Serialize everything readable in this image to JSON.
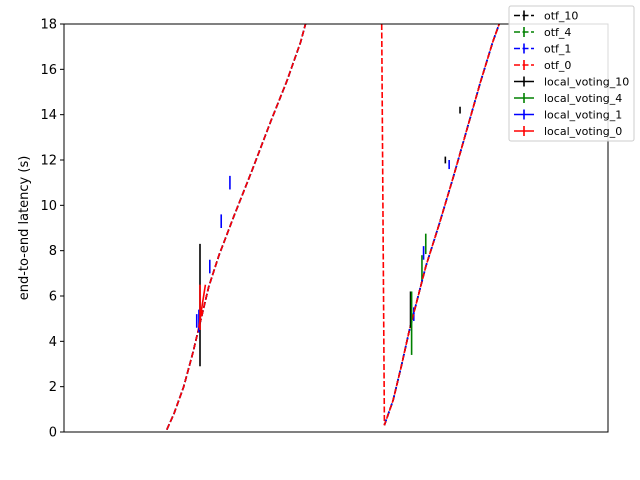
{
  "chart_data": {
    "type": "line",
    "title": "",
    "xlabel": "",
    "ylabel": "end-to-end latency (s)",
    "ylim": [
      0,
      18
    ],
    "yticks": [
      0,
      2,
      4,
      6,
      8,
      10,
      12,
      14,
      16,
      18
    ],
    "xticks": [],
    "xlim": [
      0,
      1
    ],
    "grid": false,
    "legend_position": "upper-right",
    "series": [
      {
        "name": "otf_10",
        "color": "#000000",
        "linestyle": "dashed",
        "segments": [
          [
            [
              0.189,
              0.1
            ],
            [
              0.202,
              0.8
            ],
            [
              0.22,
              2.0
            ],
            [
              0.237,
              3.5
            ],
            [
              0.252,
              5.0
            ],
            [
              0.266,
              6.4
            ],
            [
              0.285,
              7.8
            ],
            [
              0.312,
              9.5
            ],
            [
              0.345,
              11.5
            ],
            [
              0.38,
              13.7
            ],
            [
              0.41,
              15.5
            ],
            [
              0.435,
              17.2
            ],
            [
              0.444,
              18.0
            ]
          ],
          [
            [
              0.589,
              0.3
            ],
            [
              0.605,
              1.4
            ],
            [
              0.62,
              2.9
            ],
            [
              0.634,
              4.4
            ],
            [
              0.65,
              5.9
            ],
            [
              0.665,
              7.3
            ],
            [
              0.69,
              9.2
            ],
            [
              0.715,
              11.2
            ],
            [
              0.74,
              13.3
            ],
            [
              0.765,
              15.4
            ],
            [
              0.788,
              17.2
            ],
            [
              0.8,
              18.0
            ]
          ]
        ],
        "errorbars": [
          [
            0.701,
            12.0,
            0.15
          ],
          [
            0.728,
            14.2,
            0.15
          ]
        ]
      },
      {
        "name": "otf_4",
        "color": "#008000",
        "linestyle": "dashed",
        "segments": [
          [
            [
              0.189,
              0.1
            ],
            [
              0.202,
              0.8
            ],
            [
              0.22,
              2.0
            ],
            [
              0.237,
              3.5
            ],
            [
              0.252,
              5.0
            ],
            [
              0.266,
              6.4
            ],
            [
              0.285,
              7.8
            ],
            [
              0.312,
              9.5
            ],
            [
              0.345,
              11.5
            ],
            [
              0.38,
              13.7
            ],
            [
              0.41,
              15.5
            ],
            [
              0.435,
              17.2
            ],
            [
              0.444,
              18.0
            ]
          ],
          [
            [
              0.589,
              0.3
            ],
            [
              0.605,
              1.4
            ],
            [
              0.62,
              2.9
            ],
            [
              0.634,
              4.4
            ],
            [
              0.65,
              5.9
            ],
            [
              0.665,
              7.3
            ],
            [
              0.69,
              9.2
            ],
            [
              0.715,
              11.2
            ],
            [
              0.74,
              13.3
            ],
            [
              0.765,
              15.4
            ],
            [
              0.788,
              17.2
            ],
            [
              0.8,
              18.0
            ]
          ]
        ],
        "errorbars": [
          [
            0.665,
            8.3,
            0.45
          ],
          [
            0.658,
            7.2,
            0.6
          ]
        ]
      },
      {
        "name": "otf_1",
        "color": "#0000ff",
        "linestyle": "dashed",
        "segments": [
          [
            [
              0.189,
              0.1
            ],
            [
              0.202,
              0.8
            ],
            [
              0.22,
              2.0
            ],
            [
              0.237,
              3.5
            ],
            [
              0.252,
              5.0
            ],
            [
              0.266,
              6.4
            ],
            [
              0.285,
              7.8
            ],
            [
              0.312,
              9.5
            ],
            [
              0.345,
              11.5
            ],
            [
              0.38,
              13.7
            ],
            [
              0.41,
              15.5
            ],
            [
              0.435,
              17.2
            ],
            [
              0.444,
              18.0
            ]
          ],
          [
            [
              0.589,
              0.3
            ],
            [
              0.605,
              1.4
            ],
            [
              0.62,
              2.9
            ],
            [
              0.634,
              4.4
            ],
            [
              0.65,
              5.9
            ],
            [
              0.665,
              7.3
            ],
            [
              0.69,
              9.2
            ],
            [
              0.715,
              11.2
            ],
            [
              0.74,
              13.3
            ],
            [
              0.765,
              15.4
            ],
            [
              0.788,
              17.2
            ],
            [
              0.8,
              18.0
            ]
          ]
        ],
        "errorbars": [
          [
            0.244,
            4.9,
            0.3
          ],
          [
            0.268,
            7.3,
            0.3
          ],
          [
            0.289,
            9.3,
            0.3
          ],
          [
            0.305,
            11.0,
            0.3
          ],
          [
            0.643,
            5.2,
            0.3
          ],
          [
            0.661,
            7.9,
            0.3
          ],
          [
            0.708,
            11.8,
            0.2
          ]
        ]
      },
      {
        "name": "otf_0",
        "color": "#ff0000",
        "linestyle": "dashed",
        "segments": [
          [
            [
              0.189,
              0.1
            ],
            [
              0.202,
              0.8
            ],
            [
              0.22,
              2.0
            ],
            [
              0.237,
              3.5
            ],
            [
              0.252,
              5.0
            ],
            [
              0.266,
              6.4
            ],
            [
              0.285,
              7.8
            ],
            [
              0.312,
              9.5
            ],
            [
              0.345,
              11.5
            ],
            [
              0.38,
              13.7
            ],
            [
              0.41,
              15.5
            ],
            [
              0.435,
              17.2
            ],
            [
              0.444,
              18.0
            ]
          ],
          [
            [
              0.584,
              18.0
            ],
            [
              0.589,
              0.3
            ],
            [
              0.605,
              1.4
            ],
            [
              0.62,
              2.9
            ],
            [
              0.634,
              4.4
            ],
            [
              0.65,
              5.9
            ],
            [
              0.665,
              7.3
            ],
            [
              0.69,
              9.2
            ],
            [
              0.715,
              11.2
            ],
            [
              0.74,
              13.3
            ],
            [
              0.765,
              15.4
            ],
            [
              0.788,
              17.2
            ],
            [
              0.8,
              18.0
            ]
          ]
        ],
        "errorbars": []
      },
      {
        "name": "local_voting_10",
        "color": "#000000",
        "linestyle": "solid",
        "segments": [],
        "errorbars": [
          [
            0.25,
            5.6,
            2.7
          ],
          [
            0.637,
            5.4,
            0.8
          ]
        ]
      },
      {
        "name": "local_voting_4",
        "color": "#008000",
        "linestyle": "solid",
        "segments": [],
        "errorbars": [
          [
            0.639,
            4.8,
            1.4
          ]
        ]
      },
      {
        "name": "local_voting_1",
        "color": "#0000ff",
        "linestyle": "solid",
        "segments": [],
        "errorbars": [
          [
            0.248,
            4.9,
            0.5
          ]
        ]
      },
      {
        "name": "local_voting_0",
        "color": "#ff0000",
        "linestyle": "solid",
        "segments": [
          [
            [
              0.248,
              4.6
            ],
            [
              0.254,
              5.6
            ],
            [
              0.26,
              6.5
            ]
          ]
        ],
        "errorbars": [
          [
            0.25,
            5.5,
            1.0
          ]
        ]
      }
    ]
  }
}
